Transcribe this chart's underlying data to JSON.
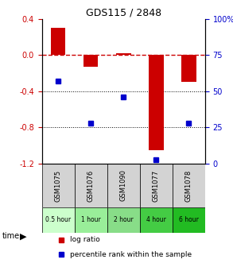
{
  "title": "GDS115 / 2848",
  "samples": [
    "GSM1075",
    "GSM1076",
    "GSM1090",
    "GSM1077",
    "GSM1078"
  ],
  "time_labels": [
    "0.5 hour",
    "1 hour",
    "2 hour",
    "4 hour",
    "6 hour"
  ],
  "time_colors": [
    "#ccffcc",
    "#99ee99",
    "#88dd88",
    "#44cc44",
    "#22bb22"
  ],
  "log_ratios": [
    0.3,
    -0.13,
    0.02,
    -1.05,
    -0.3
  ],
  "percentile_ranks": [
    57,
    28,
    46,
    3,
    28
  ],
  "bar_color": "#cc0000",
  "dot_color": "#0000cc",
  "ylim_left": [
    -1.2,
    0.4
  ],
  "ylim_right": [
    0,
    100
  ],
  "left_ticks": [
    0.4,
    0.0,
    -0.4,
    -0.8,
    -1.2
  ],
  "right_ticks": [
    100,
    75,
    50,
    25,
    0
  ],
  "hline_y": 0.0,
  "dotted_lines": [
    -0.4,
    -0.8
  ],
  "legend_log": "log ratio",
  "legend_pct": "percentile rank within the sample"
}
